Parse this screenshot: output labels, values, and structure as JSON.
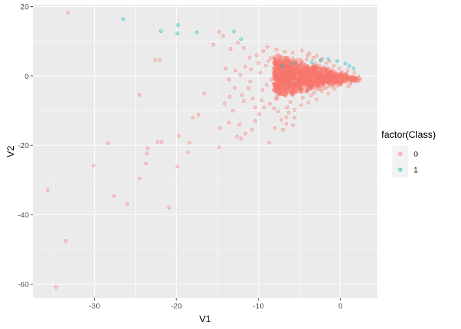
{
  "chart_data": {
    "type": "scatter",
    "title": "",
    "xlabel": "V1",
    "ylabel": "V2",
    "xlim": [
      -37.5,
      4.5
    ],
    "ylim": [
      -64,
      20.5
    ],
    "x_ticks": [
      -30,
      -20,
      -10,
      0
    ],
    "x_tick_labels": [
      "-30",
      "-20",
      "-10",
      "0"
    ],
    "y_ticks": [
      -60,
      -40,
      -20,
      0,
      20
    ],
    "y_tick_labels": [
      "-60",
      "-40",
      "-20",
      "0",
      "20"
    ],
    "grid": true,
    "legend": {
      "title": "factor(Class)",
      "placement": "right",
      "entries": [
        "0",
        "1"
      ]
    },
    "series": [
      {
        "name": "0",
        "color": "#F8766D",
        "points": [
          [
            -33.2,
            18.2
          ],
          [
            -14.8,
            12.7
          ],
          [
            -14.3,
            11.6
          ],
          [
            -12.5,
            9.6
          ],
          [
            -11.8,
            8.1
          ],
          [
            -15.5,
            9.0
          ],
          [
            -13.4,
            7.8
          ],
          [
            -14.0,
            2.2
          ],
          [
            -12.8,
            1.6
          ],
          [
            -11.6,
            2.7
          ],
          [
            -10.9,
            1.9
          ],
          [
            -12.2,
            0.3
          ],
          [
            -11.0,
            -1.6
          ],
          [
            -13.6,
            -1.0
          ],
          [
            -12.9,
            -3.4
          ],
          [
            -13.5,
            -6.0
          ],
          [
            -12.0,
            -5.5
          ],
          [
            -11.2,
            -3.5
          ],
          [
            -11.8,
            -7.2
          ],
          [
            -13.1,
            -10.0
          ],
          [
            -14.1,
            -8.0
          ],
          [
            -14.7,
            -15.0
          ],
          [
            -14.8,
            -20.5
          ],
          [
            -12.6,
            -17.5
          ],
          [
            -12.1,
            -18.0
          ],
          [
            -13.6,
            -13.4
          ],
          [
            -12.3,
            -14.0
          ],
          [
            -10.4,
            -13.0
          ],
          [
            -10.8,
            -15.5
          ],
          [
            -11.6,
            -16.6
          ],
          [
            -9.9,
            -11.0
          ],
          [
            -8.7,
            -19.2
          ],
          [
            -8.0,
            -15.0
          ],
          [
            -7.0,
            -15.5
          ],
          [
            -6.6,
            -13.8
          ],
          [
            -5.8,
            -14.2
          ],
          [
            -9.3,
            -9.0
          ],
          [
            -8.6,
            -8.0
          ],
          [
            -7.6,
            -10.2
          ],
          [
            -6.6,
            -11.9
          ],
          [
            -5.6,
            -12.0
          ],
          [
            -10.7,
            -6.5
          ],
          [
            -9.5,
            -4.0
          ],
          [
            -7.9,
            -6.5
          ],
          [
            -6.5,
            -9.0
          ],
          [
            -10.2,
            6.0
          ],
          [
            -9.4,
            7.2
          ],
          [
            -8.8,
            4.3
          ],
          [
            -7.9,
            2.5
          ],
          [
            -9.8,
            1.0
          ],
          [
            -8.4,
            -1.0
          ],
          [
            -9.0,
            -2.6
          ],
          [
            -22.6,
            4.6
          ],
          [
            -22.0,
            4.5
          ],
          [
            -24.5,
            -5.4
          ],
          [
            -18.0,
            -12.0
          ],
          [
            -17.3,
            -11.2
          ],
          [
            -16.6,
            -5.0
          ],
          [
            -18.4,
            -19.2
          ],
          [
            -19.7,
            -17.2
          ],
          [
            -21.8,
            -19.0
          ],
          [
            -22.3,
            -19.0
          ],
          [
            -23.5,
            -20.8
          ],
          [
            -23.6,
            -22.3
          ],
          [
            -23.7,
            -25.2
          ],
          [
            -24.5,
            -29.6
          ],
          [
            -19.9,
            -26.0
          ],
          [
            -18.6,
            -22.0
          ],
          [
            -20.9,
            -37.9
          ],
          [
            -26.0,
            -36.9
          ],
          [
            -27.6,
            -34.6
          ],
          [
            -30.1,
            -25.8
          ],
          [
            -28.3,
            -19.4
          ],
          [
            -35.7,
            -32.9
          ],
          [
            -33.5,
            -47.5
          ],
          [
            -34.7,
            -60.8
          ],
          [
            -7.5,
            5.8
          ],
          [
            -6.2,
            4.1
          ],
          [
            -5.8,
            6.7
          ],
          [
            -4.9,
            3.2
          ],
          [
            -4.1,
            4.8
          ],
          [
            -3.7,
            2.0
          ],
          [
            -3.0,
            3.6
          ],
          [
            -2.6,
            1.2
          ],
          [
            -2.0,
            2.5
          ],
          [
            -1.4,
            0.8
          ],
          [
            -1.0,
            1.9
          ],
          [
            -0.5,
            0.2
          ],
          [
            0.2,
            1.0
          ],
          [
            0.8,
            0.1
          ],
          [
            1.4,
            -0.4
          ],
          [
            1.9,
            -1.0
          ],
          [
            2.3,
            -0.6
          ],
          [
            2.1,
            -1.6
          ],
          [
            1.2,
            -2.2
          ],
          [
            0.5,
            -1.5
          ],
          [
            -0.3,
            -2.8
          ],
          [
            -1.1,
            -1.7
          ],
          [
            -1.8,
            -3.6
          ],
          [
            -2.5,
            -2.3
          ],
          [
            -3.2,
            -4.8
          ],
          [
            -3.9,
            -3.1
          ],
          [
            -4.6,
            -6.2
          ],
          [
            -5.3,
            -4.0
          ],
          [
            -6.1,
            -7.5
          ],
          [
            -6.9,
            -5.2
          ],
          [
            -7.6,
            -3.0
          ],
          [
            -8.2,
            -0.6
          ],
          [
            -6.7,
            0.4
          ],
          [
            -5.9,
            1.5
          ],
          [
            -5.0,
            -0.8
          ],
          [
            -4.3,
            0.6
          ],
          [
            -3.5,
            -1.2
          ],
          [
            -2.8,
            0.1
          ],
          [
            -2.1,
            -0.9
          ],
          [
            -1.6,
            0.3
          ],
          [
            -0.9,
            -0.4
          ],
          [
            -0.2,
            -0.9
          ],
          [
            0.6,
            -0.7
          ],
          [
            1.6,
            -1.3
          ],
          [
            2.4,
            -1.1
          ],
          [
            -4.0,
            5.9
          ],
          [
            -3.3,
            5.2
          ],
          [
            -2.4,
            4.4
          ],
          [
            -1.7,
            3.7
          ],
          [
            -0.8,
            3.0
          ],
          [
            -0.1,
            2.2
          ],
          [
            0.9,
            1.6
          ],
          [
            1.7,
            0.9
          ],
          [
            2.2,
            -0.2
          ],
          [
            -8.9,
            8.4
          ],
          [
            -7.8,
            7.6
          ],
          [
            -6.8,
            7.0
          ],
          [
            -6.0,
            2.9
          ],
          [
            -5.2,
            2.3
          ],
          [
            -4.4,
            -2.0
          ],
          [
            -3.6,
            -5.6
          ],
          [
            -2.9,
            -6.8
          ],
          [
            -2.3,
            -4.4
          ],
          [
            -1.5,
            -5.1
          ],
          [
            -0.7,
            -3.7
          ],
          [
            0.1,
            -2.4
          ],
          [
            1.0,
            -3.0
          ],
          [
            -5.6,
            -9.8
          ],
          [
            -4.8,
            -8.4
          ],
          [
            -3.9,
            -7.7
          ],
          [
            -7.2,
            -12.6
          ],
          [
            -6.3,
            -10.5
          ],
          [
            -8.1,
            -9.3
          ],
          [
            -9.6,
            -7.0
          ],
          [
            -10.4,
            -9.0
          ],
          [
            -9.1,
            3.0
          ],
          [
            -7.3,
            1.1
          ],
          [
            -8.5,
            5.1
          ],
          [
            -10.0,
            3.7
          ],
          [
            -11.1,
            5.3
          ],
          [
            -4.7,
            7.3
          ],
          [
            -3.8,
            6.5
          ],
          [
            -2.9,
            5.7
          ],
          [
            -2.2,
            5.0
          ],
          [
            -1.3,
            4.3
          ]
        ]
      },
      {
        "name": "1",
        "color": "#00BFC4",
        "points": [
          [
            -26.5,
            16.4
          ],
          [
            -21.9,
            12.9
          ],
          [
            -19.8,
            14.7
          ],
          [
            -19.9,
            12.3
          ],
          [
            -17.5,
            12.6
          ],
          [
            -13.0,
            12.8
          ],
          [
            -12.1,
            10.6
          ],
          [
            -7.1,
            2.8
          ],
          [
            -5.8,
            3.6
          ],
          [
            -2.4,
            4.6
          ],
          [
            -1.5,
            4.9
          ],
          [
            -0.4,
            4.3
          ],
          [
            0.6,
            3.6
          ],
          [
            1.1,
            2.9
          ],
          [
            1.6,
            2.2
          ],
          [
            -3.5,
            4.0
          ]
        ]
      }
    ]
  }
}
